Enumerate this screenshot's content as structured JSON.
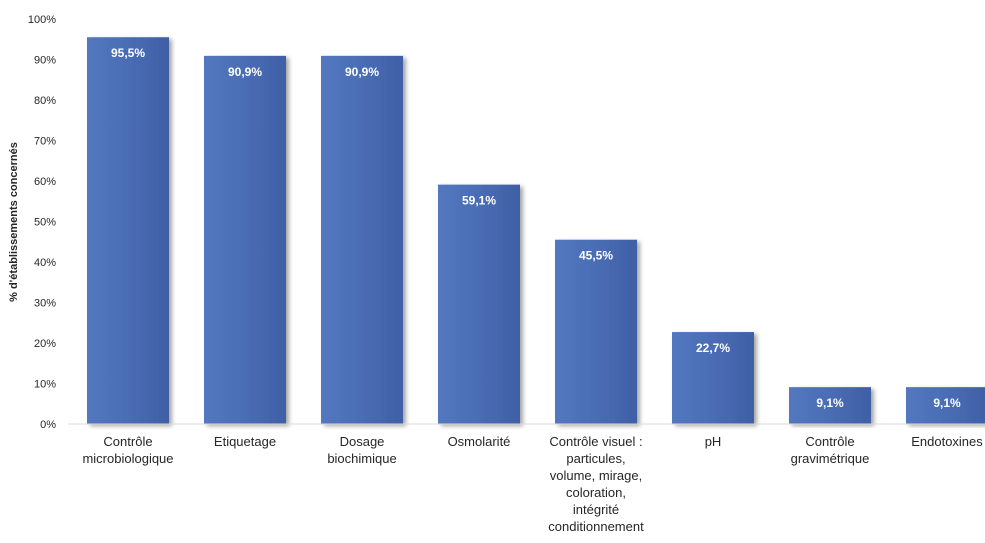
{
  "chart_data": {
    "type": "bar",
    "ylabel": "% d'établissements concernés",
    "xlabel": "",
    "ylim": [
      0,
      100
    ],
    "yticks": [
      "0%",
      "10%",
      "20%",
      "30%",
      "40%",
      "50%",
      "60%",
      "70%",
      "80%",
      "90%",
      "100%"
    ],
    "categories": [
      [
        "Contrôle",
        "microbiologique"
      ],
      [
        "Etiquetage"
      ],
      [
        "Dosage",
        "biochimique"
      ],
      [
        "Osmolarité"
      ],
      [
        "Contrôle visuel :",
        "particules,",
        "volume, mirage,",
        "coloration,",
        "intégrité",
        "conditionnement"
      ],
      [
        "pH"
      ],
      [
        "Contrôle",
        "gravimétrique"
      ],
      [
        "Endotoxines"
      ]
    ],
    "values": [
      95.5,
      90.9,
      90.9,
      59.1,
      45.5,
      22.7,
      9.1,
      9.1
    ],
    "data_labels": [
      "95,5%",
      "90,9%",
      "90,9%",
      "59,1%",
      "45,5%",
      "22,7%",
      "9,1%",
      "9,1%"
    ],
    "bar_color": "#4A6DB5",
    "grid": false,
    "legend": "none"
  }
}
